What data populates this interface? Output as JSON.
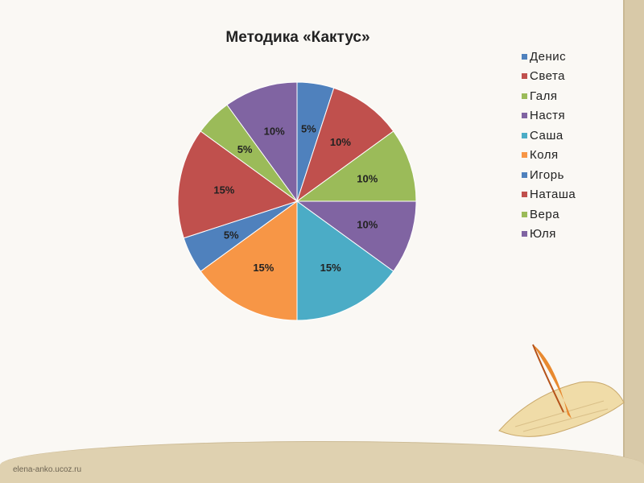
{
  "chart_data": {
    "type": "pie",
    "title": "Методика «Кактус»",
    "categories": [
      "Денис",
      "Света",
      "Галя",
      "Настя",
      "Саша",
      "Коля",
      "Игорь",
      "Наташа",
      "Вера",
      "Юля"
    ],
    "values": [
      5,
      10,
      10,
      10,
      15,
      15,
      5,
      15,
      5,
      10
    ],
    "labels": [
      "5%",
      "10%",
      "10%",
      "10%",
      "15%",
      "15%",
      "5%",
      "15%",
      "5%",
      "10%"
    ],
    "colors": [
      "#4F81BD",
      "#C0504D",
      "#9BBB59",
      "#8064A2",
      "#4BACC6",
      "#F79646",
      "#4F81BD",
      "#C0504D",
      "#9BBB59",
      "#8064A2"
    ],
    "start": "top",
    "direction": "clockwise",
    "legend_position": "right"
  },
  "footer": "elena-anko.ucoz.ru"
}
